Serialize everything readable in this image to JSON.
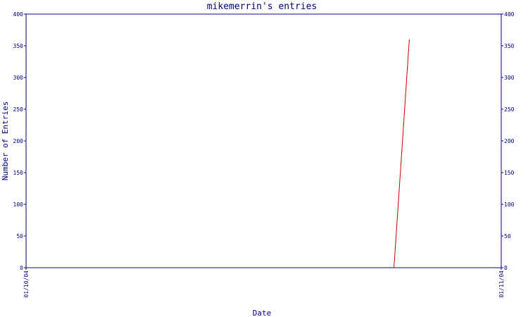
{
  "chart_data": {
    "type": "line",
    "title": "mikemerrin's entries",
    "xlabel": "Date",
    "ylabel": "Number of Entries",
    "ylim": [
      0,
      400
    ],
    "yticks": [
      0,
      50,
      100,
      150,
      200,
      250,
      300,
      350,
      400
    ],
    "xlim": [
      "01/10/04",
      "01/11/04"
    ],
    "xtick_labels": [
      "01/10/04",
      "01/11/04"
    ],
    "series": [
      {
        "color": "#cc0000",
        "x": [
          "2004-10-25",
          "2004-10-26"
        ],
        "y": [
          0,
          360
        ]
      }
    ],
    "grid": false,
    "right_axis": true
  }
}
